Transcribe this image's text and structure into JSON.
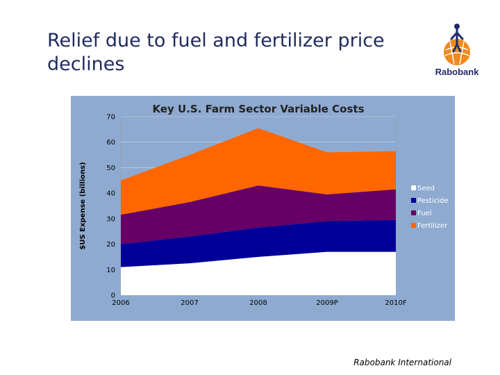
{
  "slide": {
    "title": "Relief due to fuel and fertilizer price declines",
    "footer": "Rabobank International"
  },
  "logo": {
    "name": "Rabobank",
    "icon": "rabobank-logo-icon",
    "colors": {
      "orange": "#f08a1c",
      "navy": "#1f2a6c"
    }
  },
  "chart_data": {
    "type": "area",
    "stacked": true,
    "title": "Key U.S. Farm Sector Variable Costs",
    "xlabel": "",
    "ylabel": "$US Expense (billions)",
    "categories": [
      "2006",
      "2007",
      "2008",
      "2009P",
      "2010F"
    ],
    "ylim": [
      0,
      70
    ],
    "yticks": [
      0,
      10,
      20,
      30,
      40,
      50,
      60,
      70
    ],
    "grid": true,
    "legend_position": "right",
    "series": [
      {
        "name": "Seed",
        "values": [
          11,
          12.5,
          15,
          17,
          17
        ],
        "color": "#ffffff"
      },
      {
        "name": "Pesticide",
        "values": [
          9,
          10.5,
          11.5,
          12,
          12.5
        ],
        "color": "#000099"
      },
      {
        "name": "Fuel",
        "values": [
          11.5,
          13.5,
          16.5,
          10.5,
          12
        ],
        "color": "#660066"
      },
      {
        "name": "Fertilizer",
        "values": [
          13.5,
          18.5,
          22.5,
          16.5,
          15
        ],
        "color": "#ff6600"
      }
    ],
    "background_color": "#8eaad0"
  }
}
